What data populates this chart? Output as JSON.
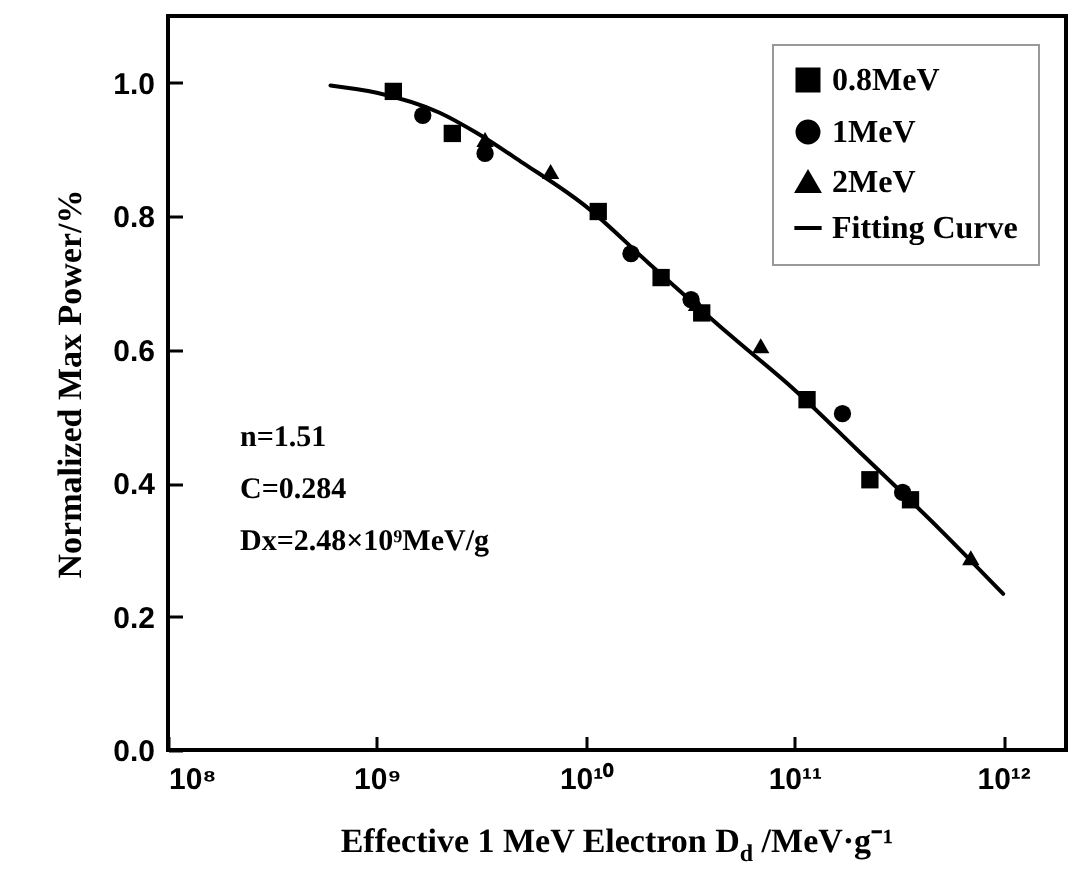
{
  "chart_data": {
    "type": "scatter",
    "xlabel": "Effective 1 MeV Electron D$_{d}$ /MeV·g⁻¹",
    "ylabel": "Normalized Max Power/%",
    "log": "x",
    "legend": "top right",
    "xlim": [
      100000000.0,
      2000000000000.0
    ],
    "ylim": [
      0,
      1.1
    ],
    "xticks": [
      {
        "value": 100000000.0,
        "label": "10⁸"
      },
      {
        "value": 1000000000.0,
        "label": "10⁹"
      },
      {
        "value": 10000000000.0,
        "label": "10¹⁰"
      },
      {
        "value": 100000000000.0,
        "label": "10¹¹"
      },
      {
        "value": 1000000000000.0,
        "label": "10¹²"
      }
    ],
    "yticks": [
      {
        "value": 0,
        "label": "0.0"
      },
      {
        "value": 0.2,
        "label": "0.2"
      },
      {
        "value": 0.4,
        "label": "0.4"
      },
      {
        "value": 0.6,
        "label": "0.6"
      },
      {
        "value": 0.8,
        "label": "0.8"
      },
      {
        "value": 1,
        "label": "1.0"
      }
    ],
    "annotations": [
      "n=1.51",
      "C=0.284",
      "Dx=2.48×10⁹MeV/g"
    ],
    "series": [
      {
        "name": "0.8MeV",
        "type": "scatter",
        "marker": "square",
        "color": "#000000",
        "x": [
          1200000000.0,
          2300000000.0,
          11500000000.0,
          23000000000.0,
          36000000000.0,
          115000000000.0,
          230000000000.0,
          360000000000.0
        ],
        "values": [
          0.987,
          0.924,
          0.807,
          0.708,
          0.655,
          0.525,
          0.405,
          0.375
        ]
      },
      {
        "name": "1MeV",
        "type": "scatter",
        "marker": "circle",
        "color": "#000000",
        "x": [
          1660000000.0,
          3300000000.0,
          16500000000.0,
          32000000000.0,
          170000000000.0,
          330000000000.0
        ],
        "values": [
          0.951,
          0.894,
          0.744,
          0.675,
          0.504,
          0.386
        ]
      },
      {
        "name": "2MeV",
        "type": "scatter",
        "marker": "triangle",
        "color": "#000000",
        "x": [
          3300000000.0,
          6800000000.0,
          34000000000.0,
          69000000000.0,
          700000000000.0
        ],
        "values": [
          0.915,
          0.867,
          0.669,
          0.606,
          0.288
        ]
      },
      {
        "name": "Fitting Curve",
        "type": "line",
        "color": "#000000",
        "x": [
          600000000.0,
          1000000000.0,
          2000000000.0,
          3000000000.0,
          5000000000.0,
          10000000000.0,
          20000000000.0,
          50000000000.0,
          100000000000.0,
          200000000000.0,
          500000000000.0,
          1000000000000.0
        ],
        "values": [
          0.996,
          0.985,
          0.955,
          0.925,
          0.88,
          0.815,
          0.73,
          0.62,
          0.54,
          0.45,
          0.33,
          0.234
        ]
      }
    ]
  }
}
